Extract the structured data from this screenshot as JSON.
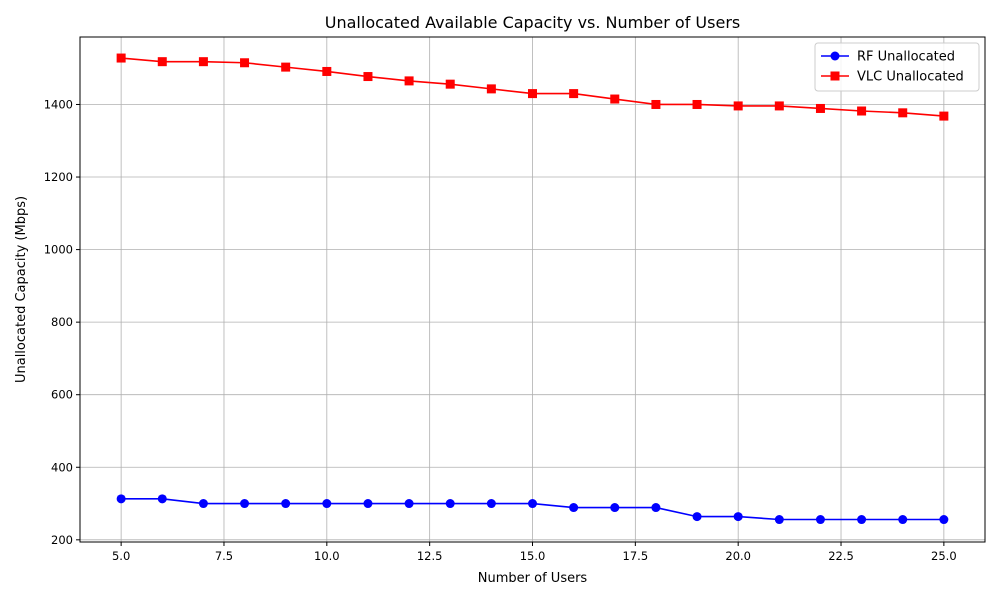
{
  "chart_data": {
    "type": "line",
    "title": "Unallocated Available Capacity vs. Number of Users",
    "xlabel": "Number of Users",
    "ylabel": "Unallocated Capacity (Mbps)",
    "xlim": [
      4.0,
      26.0
    ],
    "ylim": [
      194,
      1586
    ],
    "x_ticks": [
      5.0,
      7.5,
      10.0,
      12.5,
      15.0,
      17.5,
      20.0,
      22.5,
      25.0
    ],
    "x_tick_labels": [
      "5.0",
      "7.5",
      "10.0",
      "12.5",
      "15.0",
      "17.5",
      "20.0",
      "22.5",
      "25.0"
    ],
    "y_ticks": [
      200,
      400,
      600,
      800,
      1000,
      1200,
      1400
    ],
    "y_tick_labels": [
      "200",
      "400",
      "600",
      "800",
      "1000",
      "1200",
      "1400"
    ],
    "grid": true,
    "legend_position": "top-right",
    "x": [
      5,
      6,
      7,
      8,
      9,
      10,
      11,
      12,
      13,
      14,
      15,
      16,
      17,
      18,
      19,
      20,
      21,
      22,
      23,
      24,
      25
    ],
    "series": [
      {
        "name": "RF Unallocated",
        "color": "#0000ff",
        "marker": "circle",
        "values": [
          313,
          313,
          300,
          300,
          300,
          300,
          300,
          300,
          300,
          300,
          300,
          289,
          289,
          289,
          264,
          264,
          256,
          256,
          256,
          256,
          256
        ]
      },
      {
        "name": "VLC Unallocated",
        "color": "#ff0000",
        "marker": "square",
        "values": [
          1528,
          1518,
          1518,
          1515,
          1503,
          1491,
          1477,
          1465,
          1456,
          1443,
          1430,
          1430,
          1415,
          1400,
          1400,
          1396,
          1396,
          1389,
          1382,
          1377,
          1368
        ]
      }
    ]
  }
}
